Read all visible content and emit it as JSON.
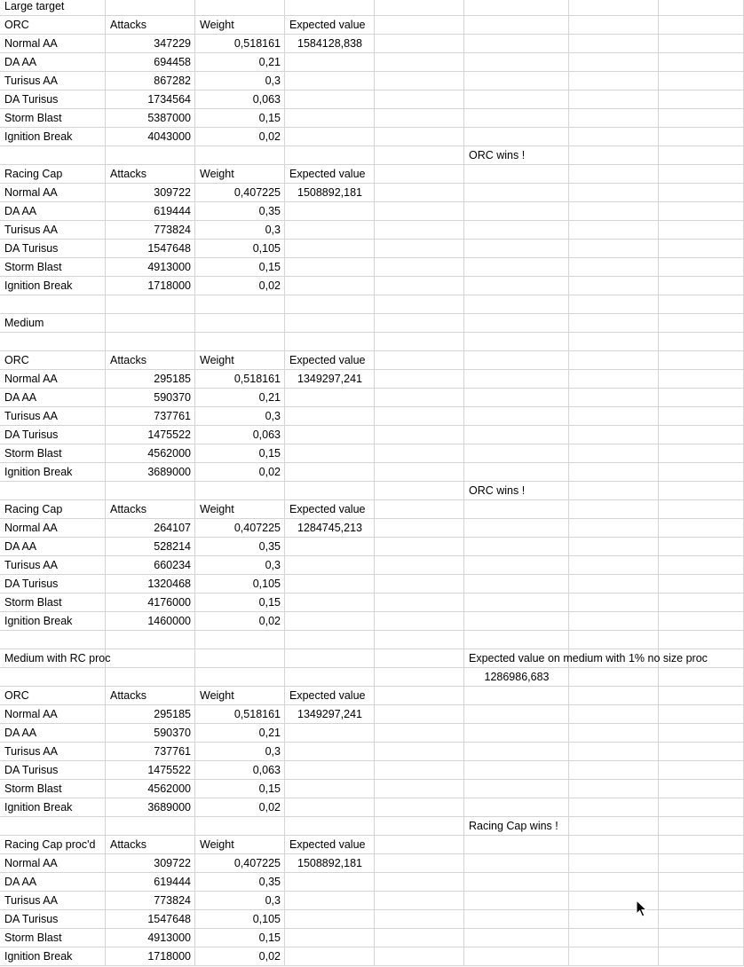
{
  "sheet": {
    "rows": [
      [
        "Large target",
        "",
        "",
        "",
        "",
        "",
        "",
        ""
      ],
      [
        "ORC",
        "Attacks",
        "Weight",
        "Expected value",
        "",
        "",
        "",
        ""
      ],
      [
        "Normal AA",
        "347229",
        "0,518161",
        "1584128,838",
        "",
        "",
        "",
        ""
      ],
      [
        "DA AA",
        "694458",
        "0,21",
        "",
        "",
        "",
        "",
        ""
      ],
      [
        "Turisus AA",
        "867282",
        "0,3",
        "",
        "",
        "",
        "",
        ""
      ],
      [
        "DA Turisus",
        "1734564",
        "0,063",
        "",
        "",
        "",
        "",
        ""
      ],
      [
        "Storm Blast",
        "5387000",
        "0,15",
        "",
        "",
        "",
        "",
        ""
      ],
      [
        "Ignition Break",
        "4043000",
        "0,02",
        "",
        "",
        "",
        "",
        ""
      ],
      [
        "",
        "",
        "",
        "",
        "",
        "ORC wins !",
        "",
        ""
      ],
      [
        "Racing Cap",
        "Attacks",
        "Weight",
        "Expected value",
        "",
        "",
        "",
        ""
      ],
      [
        "Normal AA",
        "309722",
        "0,407225",
        "1508892,181",
        "",
        "",
        "",
        ""
      ],
      [
        "DA AA",
        "619444",
        "0,35",
        "",
        "",
        "",
        "",
        ""
      ],
      [
        "Turisus AA",
        "773824",
        "0,3",
        "",
        "",
        "",
        "",
        ""
      ],
      [
        "DA Turisus",
        "1547648",
        "0,105",
        "",
        "",
        "",
        "",
        ""
      ],
      [
        "Storm Blast",
        "4913000",
        "0,15",
        "",
        "",
        "",
        "",
        ""
      ],
      [
        "Ignition Break",
        "1718000",
        "0,02",
        "",
        "",
        "",
        "",
        ""
      ],
      [
        "",
        "",
        "",
        "",
        "",
        "",
        "",
        ""
      ],
      [
        "Medium",
        "",
        "",
        "",
        "",
        "",
        "",
        ""
      ],
      [
        "",
        "",
        "",
        "",
        "",
        "",
        "",
        ""
      ],
      [
        "ORC",
        "Attacks",
        "Weight",
        "Expected value",
        "",
        "",
        "",
        ""
      ],
      [
        "Normal AA",
        "295185",
        "0,518161",
        "1349297,241",
        "",
        "",
        "",
        ""
      ],
      [
        "DA AA",
        "590370",
        "0,21",
        "",
        "",
        "",
        "",
        ""
      ],
      [
        "Turisus AA",
        "737761",
        "0,3",
        "",
        "",
        "",
        "",
        ""
      ],
      [
        "DA Turisus",
        "1475522",
        "0,063",
        "",
        "",
        "",
        "",
        ""
      ],
      [
        "Storm Blast",
        "4562000",
        "0,15",
        "",
        "",
        "",
        "",
        ""
      ],
      [
        "Ignition Break",
        "3689000",
        "0,02",
        "",
        "",
        "",
        "",
        ""
      ],
      [
        "",
        "",
        "",
        "",
        "",
        "ORC wins !",
        "",
        ""
      ],
      [
        "Racing Cap",
        "Attacks",
        "Weight",
        "Expected value",
        "",
        "",
        "",
        ""
      ],
      [
        "Normal AA",
        "264107",
        "0,407225",
        "1284745,213",
        "",
        "",
        "",
        ""
      ],
      [
        "DA AA",
        "528214",
        "0,35",
        "",
        "",
        "",
        "",
        ""
      ],
      [
        "Turisus AA",
        "660234",
        "0,3",
        "",
        "",
        "",
        "",
        ""
      ],
      [
        "DA Turisus",
        "1320468",
        "0,105",
        "",
        "",
        "",
        "",
        ""
      ],
      [
        "Storm Blast",
        "4176000",
        "0,15",
        "",
        "",
        "",
        "",
        ""
      ],
      [
        "Ignition Break",
        "1460000",
        "0,02",
        "",
        "",
        "",
        "",
        ""
      ],
      [
        "",
        "",
        "",
        "",
        "",
        "",
        "",
        ""
      ],
      [
        "Medium with RC proc",
        "",
        "",
        "",
        "",
        "Expected value on medium with 1% no size proc",
        "",
        ""
      ],
      [
        "",
        "",
        "",
        "",
        "",
        "1286986,683",
        "",
        ""
      ],
      [
        "ORC",
        "Attacks",
        "Weight",
        "Expected value",
        "",
        "",
        "",
        ""
      ],
      [
        "Normal AA",
        "295185",
        "0,518161",
        "1349297,241",
        "",
        "",
        "",
        ""
      ],
      [
        "DA AA",
        "590370",
        "0,21",
        "",
        "",
        "",
        "",
        ""
      ],
      [
        "Turisus AA",
        "737761",
        "0,3",
        "",
        "",
        "",
        "",
        ""
      ],
      [
        "DA Turisus",
        "1475522",
        "0,063",
        "",
        "",
        "",
        "",
        ""
      ],
      [
        "Storm Blast",
        "4562000",
        "0,15",
        "",
        "",
        "",
        "",
        ""
      ],
      [
        "Ignition Break",
        "3689000",
        "0,02",
        "",
        "",
        "",
        "",
        ""
      ],
      [
        "",
        "",
        "",
        "",
        "",
        "Racing Cap wins !",
        "",
        ""
      ],
      [
        "Racing Cap proc'd",
        "Attacks",
        "Weight",
        "Expected value",
        "",
        "",
        "",
        ""
      ],
      [
        "Normal AA",
        "309722",
        "0,407225",
        "1508892,181",
        "",
        "",
        "",
        ""
      ],
      [
        "DA AA",
        "619444",
        "0,35",
        "",
        "",
        "",
        "",
        ""
      ],
      [
        "Turisus AA",
        "773824",
        "0,3",
        "",
        "",
        "",
        "",
        ""
      ],
      [
        "DA Turisus",
        "1547648",
        "0,105",
        "",
        "",
        "",
        "",
        ""
      ],
      [
        "Storm Blast",
        "4913000",
        "0,15",
        "",
        "",
        "",
        "",
        ""
      ],
      [
        "Ignition Break",
        "1718000",
        "0,02",
        "",
        "",
        "",
        "",
        ""
      ]
    ]
  },
  "colors": {
    "gridline": "#d4d4d4",
    "background": "#ffffff",
    "text": "#000000"
  },
  "cursor_icon": "mouse-pointer-icon"
}
